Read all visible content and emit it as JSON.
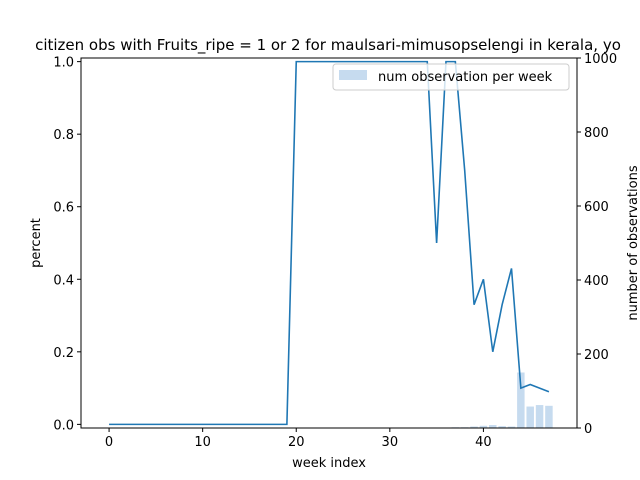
{
  "chart_data": {
    "type": "bar+line",
    "title": "citizen obs with Fruits_ripe = 1 or 2 for maulsari-mimusopselengi in kerala, yo",
    "xlabel": "week index",
    "ylabel_left": "percent",
    "ylabel_right": "number of observations",
    "xlim": [
      -3,
      50
    ],
    "ylim_left": [
      -0.01,
      1.01
    ],
    "ylim_right": [
      0,
      1000
    ],
    "x_ticks": [
      0,
      10,
      20,
      30,
      40
    ],
    "y_ticks_left": [
      "0.0",
      "0.2",
      "0.4",
      "0.6",
      "0.8",
      "1.0"
    ],
    "y_ticks_right": [
      "0",
      "200",
      "400",
      "600",
      "800",
      "1000"
    ],
    "legend": {
      "label": "num observation per week",
      "position": "upper right"
    },
    "colors": {
      "line": "#1f77b4",
      "bar": "#c6dbef"
    },
    "line_series": {
      "x": [
        0,
        1,
        2,
        3,
        4,
        5,
        6,
        7,
        8,
        9,
        10,
        11,
        12,
        13,
        14,
        15,
        16,
        17,
        18,
        19,
        20,
        21,
        22,
        23,
        24,
        25,
        26,
        27,
        28,
        29,
        30,
        31,
        32,
        33,
        34,
        35,
        36,
        37,
        38,
        39,
        40,
        41,
        42,
        43,
        44,
        45,
        46,
        47
      ],
      "y": [
        0,
        0,
        0,
        0,
        0,
        0,
        0,
        0,
        0,
        0,
        0,
        0,
        0,
        0,
        0,
        0,
        0,
        0,
        0,
        0,
        1,
        1,
        1,
        1,
        1,
        1,
        1,
        1,
        1,
        1,
        1,
        1,
        1,
        1,
        1,
        0.5,
        1,
        1,
        0.7,
        0.33,
        0.4,
        0.2,
        0.33,
        0.43,
        0.1,
        0.11,
        0.1,
        0.09
      ]
    },
    "bar_series": {
      "x": [
        25,
        28,
        34,
        35,
        36,
        37,
        38,
        39,
        40,
        41,
        42,
        43,
        44,
        45,
        46,
        47
      ],
      "y": [
        1,
        1,
        1,
        1,
        1,
        2,
        2,
        4,
        6,
        8,
        5,
        4,
        150,
        58,
        62,
        60
      ]
    }
  }
}
